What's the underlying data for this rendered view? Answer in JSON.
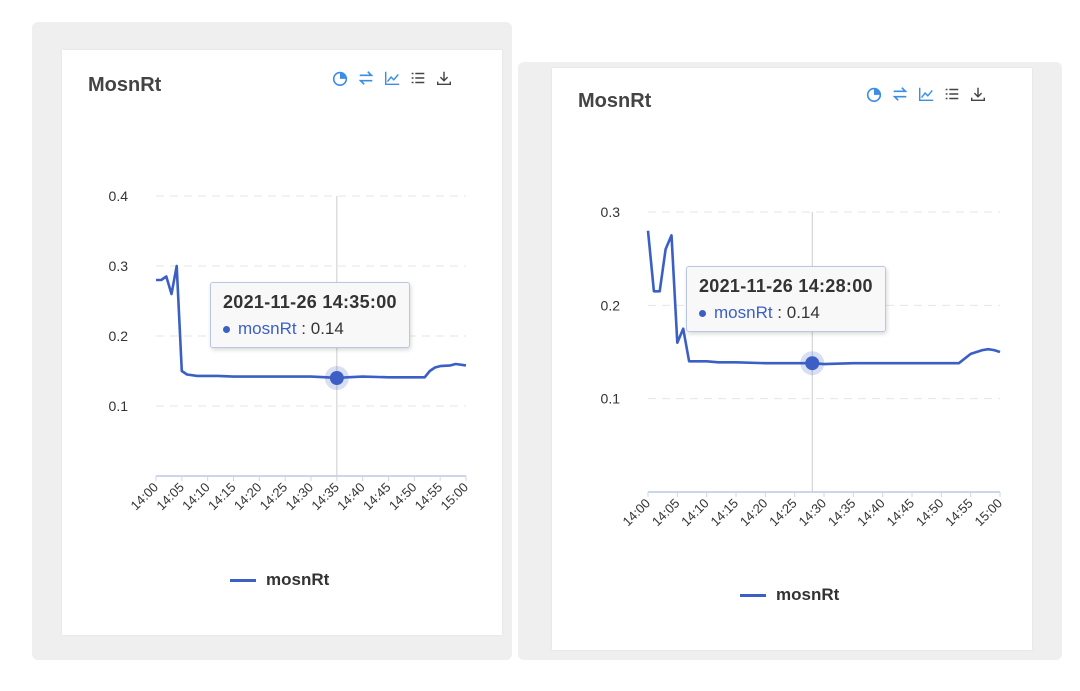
{
  "panels": [
    {
      "title": "MosnRt",
      "toolbox": [
        "pie-icon",
        "swap-icon",
        "line-chart-icon",
        "list-icon",
        "download-icon"
      ],
      "tooltip": {
        "time": "2021-11-26 14:35:00",
        "series": "mosnRt",
        "value": "0.14"
      },
      "legend": "mosnRt"
    },
    {
      "title": "MosnRt",
      "toolbox": [
        "pie-icon",
        "swap-icon",
        "line-chart-icon",
        "list-icon",
        "download-icon"
      ],
      "tooltip": {
        "time": "2021-11-26 14:28:00",
        "series": "mosnRt",
        "value": "0.14"
      },
      "legend": "mosnRt"
    }
  ],
  "colors": {
    "series": "#3b5fc4",
    "toolbox_accent": "#3a8ee6",
    "grid": "#e6e6e6",
    "axis": "#ccd6eb"
  },
  "chart_data": [
    {
      "type": "line",
      "series": [
        {
          "name": "mosnRt",
          "x": [
            0,
            1,
            2,
            3,
            4,
            5,
            6,
            8,
            10,
            12,
            15,
            20,
            25,
            30,
            33,
            35,
            37,
            40,
            45,
            48,
            50,
            52,
            53,
            54,
            55,
            57,
            58,
            60
          ],
          "values": [
            0.28,
            0.28,
            0.285,
            0.26,
            0.3,
            0.15,
            0.145,
            0.143,
            0.143,
            0.143,
            0.142,
            0.142,
            0.142,
            0.142,
            0.141,
            0.14,
            0.141,
            0.142,
            0.141,
            0.141,
            0.141,
            0.141,
            0.15,
            0.155,
            0.157,
            0.158,
            0.16,
            0.158
          ]
        }
      ],
      "x_ticks": [
        "14:00",
        "14:05",
        "14:10",
        "14:15",
        "14:20",
        "14:25",
        "14:30",
        "14:35",
        "14:40",
        "14:45",
        "14:50",
        "14:55",
        "15:00"
      ],
      "y_ticks": [
        "0.1",
        "0.2",
        "0.3",
        "0.4"
      ],
      "ylim": [
        0,
        0.4
      ],
      "xlim": [
        0,
        60
      ],
      "highlight": {
        "x": 35,
        "y": 0.14
      },
      "grid": true,
      "legend": "bottom-center"
    },
    {
      "type": "line",
      "series": [
        {
          "name": "mosnRt",
          "x": [
            0,
            1,
            2,
            3,
            4,
            5,
            6,
            7,
            8,
            10,
            12,
            15,
            20,
            25,
            28,
            30,
            35,
            40,
            45,
            50,
            53,
            55,
            57,
            58,
            59,
            60
          ],
          "values": [
            0.28,
            0.215,
            0.215,
            0.26,
            0.275,
            0.16,
            0.175,
            0.14,
            0.14,
            0.14,
            0.139,
            0.139,
            0.138,
            0.138,
            0.138,
            0.137,
            0.138,
            0.138,
            0.138,
            0.138,
            0.138,
            0.148,
            0.152,
            0.153,
            0.152,
            0.15
          ]
        }
      ],
      "x_ticks": [
        "14:00",
        "14:05",
        "14:10",
        "14:15",
        "14:20",
        "14:25",
        "14:30",
        "14:35",
        "14:40",
        "14:45",
        "14:50",
        "14:55",
        "15:00"
      ],
      "y_ticks": [
        "0.1",
        "0.2",
        "0.3"
      ],
      "ylim": [
        0,
        0.3
      ],
      "xlim": [
        0,
        60
      ],
      "highlight": {
        "x": 28,
        "y": 0.138
      },
      "grid": true,
      "legend": "bottom-center"
    }
  ]
}
